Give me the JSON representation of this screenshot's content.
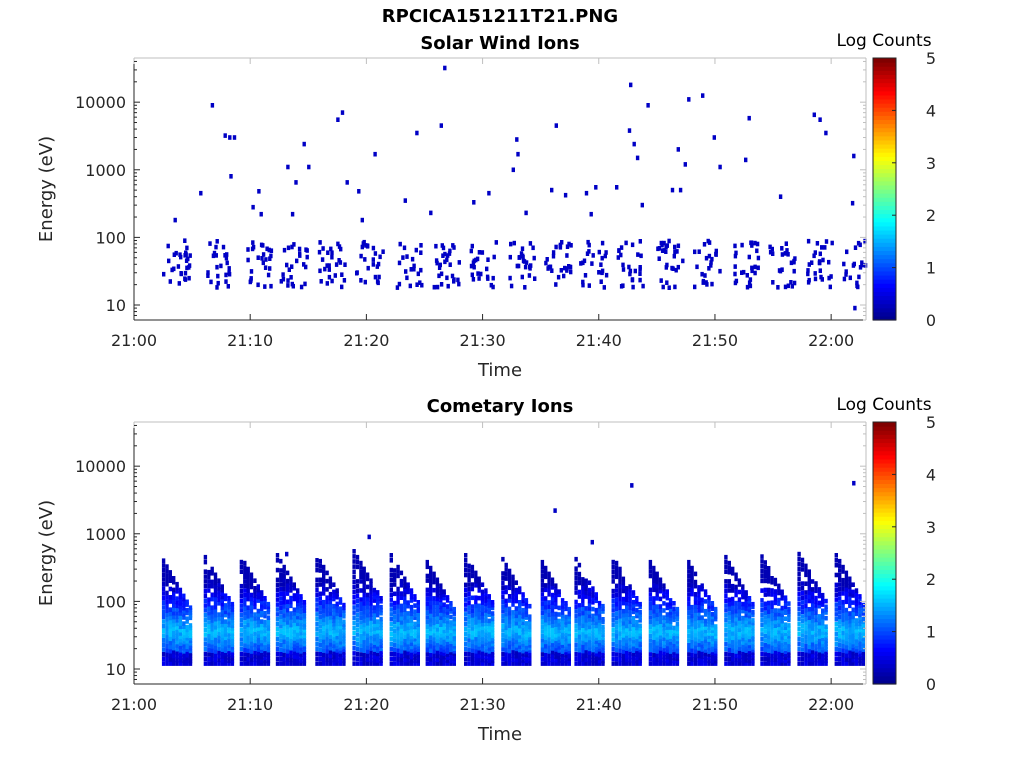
{
  "figure": {
    "title": "RPCICA151211T21.PNG"
  },
  "colormap": {
    "name": "jet",
    "stops": [
      "#00008f",
      "#0000ff",
      "#0080ff",
      "#00ffff",
      "#80ff80",
      "#ffff00",
      "#ff8000",
      "#ff0000",
      "#800000"
    ],
    "background": "#ffffff"
  },
  "chart_data": [
    {
      "type": "heatmap",
      "title": "Solar Wind Ions",
      "xlabel": "Time",
      "ylabel": "Energy (eV)",
      "x_ticks": [
        "21:00",
        "21:10",
        "21:20",
        "21:30",
        "21:40",
        "21:50",
        "22:00"
      ],
      "y_ticks": [
        "10",
        "100",
        "1000",
        "10000"
      ],
      "y_scale": "log",
      "ylim": [
        6,
        45000
      ],
      "xlim_minutes": [
        0,
        63
      ],
      "grid": false,
      "colorbar": {
        "label": "Log Counts",
        "range": [
          0,
          5
        ],
        "ticks": [
          "0",
          "1",
          "2",
          "3",
          "4",
          "5"
        ]
      },
      "bursts_minute": [
        3.5,
        7.3,
        10.5,
        13.6,
        16.9,
        20.1,
        23.6,
        26.8,
        29.9,
        33.2,
        36.4,
        39.4,
        42.6,
        45.9,
        49.2,
        52.4,
        55.6,
        58.9,
        62.0
      ],
      "burst_core_energy_eV": [
        20,
        80
      ],
      "burst_level": 0.3,
      "sparse_points": [
        {
          "t": 6.6,
          "e": 9000
        },
        {
          "t": 7.7,
          "e": 3200
        },
        {
          "t": 8.1,
          "e": 3000
        },
        {
          "t": 8.5,
          "e": 3000
        },
        {
          "t": 8.2,
          "e": 800
        },
        {
          "t": 5.6,
          "e": 450
        },
        {
          "t": 10.6,
          "e": 480
        },
        {
          "t": 10.1,
          "e": 280
        },
        {
          "t": 13.1,
          "e": 1100
        },
        {
          "t": 13.8,
          "e": 650
        },
        {
          "t": 14.5,
          "e": 2400
        },
        {
          "t": 14.9,
          "e": 1100
        },
        {
          "t": 17.4,
          "e": 5500
        },
        {
          "t": 17.8,
          "e": 7000
        },
        {
          "t": 18.2,
          "e": 650
        },
        {
          "t": 19.2,
          "e": 480
        },
        {
          "t": 20.6,
          "e": 1700
        },
        {
          "t": 24.2,
          "e": 3500
        },
        {
          "t": 26.3,
          "e": 4500
        },
        {
          "t": 26.6,
          "e": 32000
        },
        {
          "t": 23.2,
          "e": 350
        },
        {
          "t": 29.1,
          "e": 330
        },
        {
          "t": 30.4,
          "e": 450
        },
        {
          "t": 32.5,
          "e": 1000
        },
        {
          "t": 32.8,
          "e": 2800
        },
        {
          "t": 32.9,
          "e": 1700
        },
        {
          "t": 35.8,
          "e": 500
        },
        {
          "t": 36.2,
          "e": 4500
        },
        {
          "t": 37.0,
          "e": 420
        },
        {
          "t": 38.8,
          "e": 450
        },
        {
          "t": 39.6,
          "e": 550
        },
        {
          "t": 41.4,
          "e": 550
        },
        {
          "t": 42.5,
          "e": 3800
        },
        {
          "t": 42.6,
          "e": 18000
        },
        {
          "t": 42.9,
          "e": 2400
        },
        {
          "t": 43.2,
          "e": 1500
        },
        {
          "t": 44.1,
          "e": 9000
        },
        {
          "t": 46.2,
          "e": 500
        },
        {
          "t": 46.7,
          "e": 2000
        },
        {
          "t": 46.9,
          "e": 500
        },
        {
          "t": 47.3,
          "e": 1200
        },
        {
          "t": 47.6,
          "e": 11000
        },
        {
          "t": 48.8,
          "e": 12500
        },
        {
          "t": 49.8,
          "e": 3000
        },
        {
          "t": 50.3,
          "e": 1100
        },
        {
          "t": 52.8,
          "e": 5800
        },
        {
          "t": 52.5,
          "e": 1400
        },
        {
          "t": 55.5,
          "e": 400
        },
        {
          "t": 58.4,
          "e": 6500
        },
        {
          "t": 58.9,
          "e": 5500
        },
        {
          "t": 59.4,
          "e": 3500
        },
        {
          "t": 61.8,
          "e": 1600
        },
        {
          "t": 61.7,
          "e": 320
        },
        {
          "t": 3.4,
          "e": 180
        },
        {
          "t": 10.8,
          "e": 220
        },
        {
          "t": 13.5,
          "e": 220
        },
        {
          "t": 19.5,
          "e": 180
        },
        {
          "t": 25.4,
          "e": 230
        },
        {
          "t": 33.6,
          "e": 230
        },
        {
          "t": 39.2,
          "e": 220
        },
        {
          "t": 43.6,
          "e": 300
        },
        {
          "t": 12.5,
          "e": 6
        },
        {
          "t": 56.8,
          "e": 6
        },
        {
          "t": 61.9,
          "e": 9
        }
      ]
    },
    {
      "type": "heatmap",
      "title": "Cometary Ions",
      "xlabel": "Time",
      "ylabel": "Energy (eV)",
      "x_ticks": [
        "21:00",
        "21:10",
        "21:20",
        "21:30",
        "21:40",
        "21:50",
        "22:00"
      ],
      "y_ticks": [
        "10",
        "100",
        "1000",
        "10000"
      ],
      "y_scale": "log",
      "ylim": [
        6,
        45000
      ],
      "xlim_minutes": [
        0,
        63
      ],
      "grid": false,
      "colorbar": {
        "label": "Log Counts",
        "range": [
          0,
          5
        ],
        "ticks": [
          "0",
          "1",
          "2",
          "3",
          "4",
          "5"
        ]
      },
      "bursts_minute": [
        3.6,
        7.2,
        10.3,
        13.4,
        16.8,
        20.0,
        23.2,
        26.3,
        29.6,
        32.8,
        36.2,
        39.1,
        42.3,
        45.5,
        48.8,
        52.0,
        55.1,
        58.3,
        61.5
      ],
      "burst_peak_energy_eV": [
        400,
        450,
        450,
        480,
        480,
        550,
        480,
        380,
        480,
        420,
        380,
        420,
        450,
        380,
        380,
        450,
        460,
        500,
        480
      ],
      "burst_level_range": [
        0.2,
        1.6
      ],
      "sparse_points": [
        {
          "t": 20.1,
          "e": 900
        },
        {
          "t": 36.1,
          "e": 2200
        },
        {
          "t": 39.3,
          "e": 750
        },
        {
          "t": 42.7,
          "e": 5200
        },
        {
          "t": 61.8,
          "e": 5600
        },
        {
          "t": 13.0,
          "e": 500
        }
      ]
    }
  ]
}
